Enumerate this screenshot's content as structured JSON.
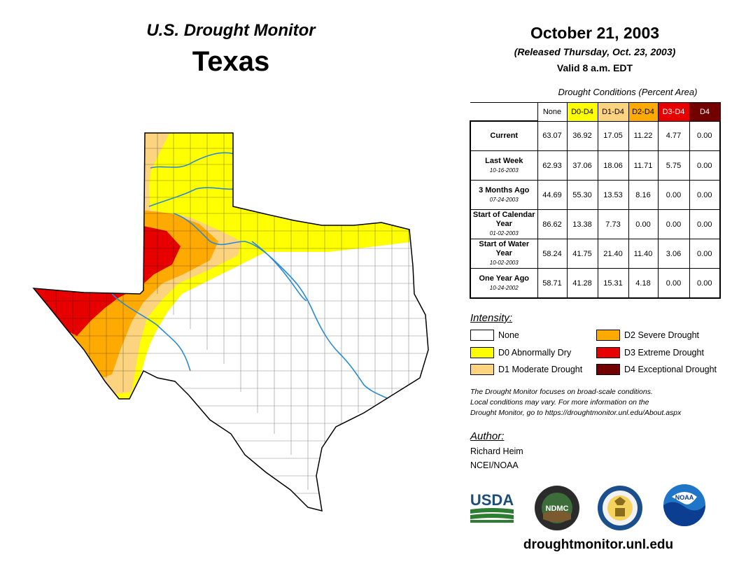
{
  "header": {
    "monitor_title": "U.S. Drought Monitor",
    "state": "Texas",
    "date": "October 21, 2003",
    "released": "(Released Thursday, Oct. 23, 2003)",
    "valid": "Valid 8 a.m. EDT"
  },
  "table": {
    "title": "Drought Conditions (Percent Area)",
    "columns": [
      {
        "label": "None",
        "bg": "#ffffff",
        "fg": "#000000"
      },
      {
        "label": "D0-D4",
        "bg": "#ffff00",
        "fg": "#000000"
      },
      {
        "label": "D1-D4",
        "bg": "#fcd37f",
        "fg": "#000000"
      },
      {
        "label": "D2-D4",
        "bg": "#ffaa00",
        "fg": "#000000"
      },
      {
        "label": "D3-D4",
        "bg": "#e60000",
        "fg": "#ffffff"
      },
      {
        "label": "D4",
        "bg": "#730000",
        "fg": "#ffffff"
      }
    ],
    "rows": [
      {
        "label": "Current",
        "date": "",
        "values": [
          "63.07",
          "36.92",
          "17.05",
          "11.22",
          "4.77",
          "0.00"
        ]
      },
      {
        "label": "Last Week",
        "date": "10-16-2003",
        "values": [
          "62.93",
          "37.06",
          "18.06",
          "11.71",
          "5.75",
          "0.00"
        ]
      },
      {
        "label": "3 Months Ago",
        "date": "07-24-2003",
        "values": [
          "44.69",
          "55.30",
          "13.53",
          "8.16",
          "0.00",
          "0.00"
        ]
      },
      {
        "label": "Start of Calendar Year",
        "date": "01-02-2003",
        "values": [
          "86.62",
          "13.38",
          "7.73",
          "0.00",
          "0.00",
          "0.00"
        ]
      },
      {
        "label": "Start of Water Year",
        "date": "10-02-2003",
        "values": [
          "58.24",
          "41.75",
          "21.40",
          "11.40",
          "3.06",
          "0.00"
        ]
      },
      {
        "label": "One Year Ago",
        "date": "10-24-2002",
        "values": [
          "58.71",
          "41.28",
          "15.31",
          "4.18",
          "0.00",
          "0.00"
        ]
      }
    ]
  },
  "legend": {
    "title": "Intensity:",
    "items": [
      {
        "label": "None",
        "color": "#ffffff"
      },
      {
        "label": "D0 Abnormally Dry",
        "color": "#ffff00"
      },
      {
        "label": "D1 Moderate Drought",
        "color": "#fcd37f"
      },
      {
        "label": "D2 Severe Drought",
        "color": "#ffaa00"
      },
      {
        "label": "D3 Extreme Drought",
        "color": "#e60000"
      },
      {
        "label": "D4 Exceptional Drought",
        "color": "#730000"
      }
    ]
  },
  "note": {
    "line1": "The Drought Monitor focuses on broad-scale conditions.",
    "line2": "Local conditions may vary. For more information on the",
    "line3": "Drought Monitor, go to https://droughtmonitor.unl.edu/About.aspx"
  },
  "author": {
    "title": "Author:",
    "name": "Richard Heim",
    "org": "NCEI/NOAA"
  },
  "logos": {
    "usda": "USDA",
    "ndmc": "NDMC",
    "noaa": "NOAA"
  },
  "website": "droughtmonitor.unl.edu"
}
